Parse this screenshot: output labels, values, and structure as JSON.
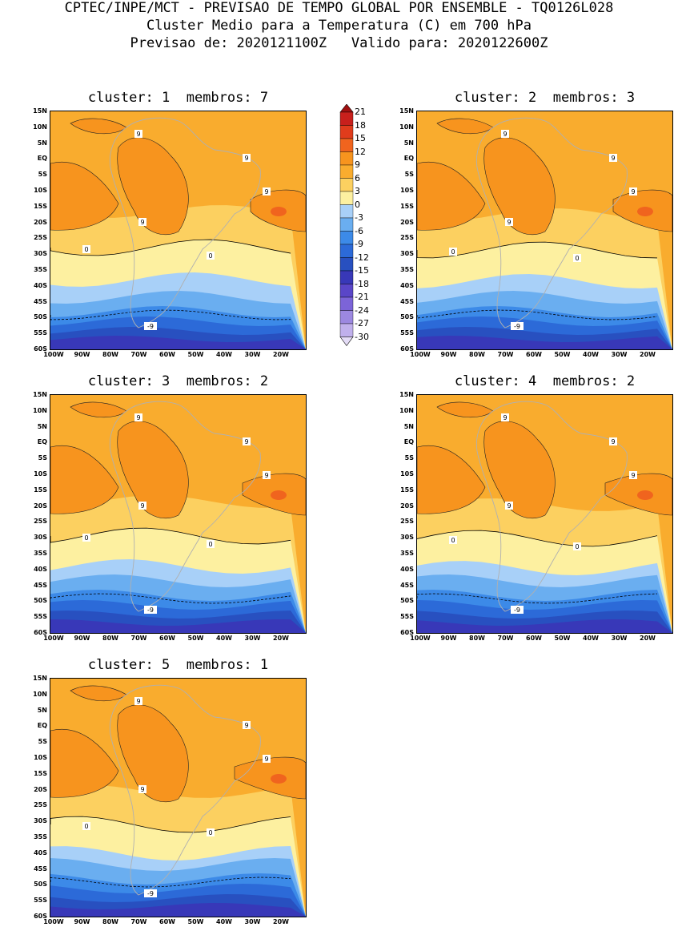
{
  "header": {
    "line1": "CPTEC/INPE/MCT - PREVISAO DE TEMPO GLOBAL POR ENSEMBLE - TQ0126L028",
    "line2": "Cluster Medio para a Temperatura (C) em 700 hPa",
    "line3": "Previsao de: 2020121100Z   Valido para: 2020122600Z"
  },
  "panels": [
    {
      "title": "cluster: 1  membros: 7"
    },
    {
      "title": "cluster: 2  membros: 3"
    },
    {
      "title": "cluster: 3  membros: 2"
    },
    {
      "title": "cluster: 4  membros: 2"
    },
    {
      "title": "cluster: 5  membros: 1"
    }
  ],
  "lat_labels": [
    "15N",
    "10N",
    "5N",
    "EQ",
    "5S",
    "10S",
    "15S",
    "20S",
    "25S",
    "30S",
    "35S",
    "40S",
    "45S",
    "50S",
    "55S",
    "60S"
  ],
  "lon_labels": [
    "100W",
    "90W",
    "80W",
    "70W",
    "60W",
    "50W",
    "40W",
    "30W",
    "20W"
  ],
  "contour_labels": [
    "9",
    "0",
    "-9"
  ],
  "colorbar": {
    "levels": [
      "21",
      "18",
      "15",
      "12",
      "9",
      "6",
      "3",
      "0",
      "-3",
      "-6",
      "-9",
      "-12",
      "-15",
      "-18",
      "-21",
      "-24",
      "-27",
      "-30"
    ],
    "colors": [
      "#a01010",
      "#c8201c",
      "#e03c1c",
      "#f0641e",
      "#f7941e",
      "#f9ac2e",
      "#fcd060",
      "#fdf0a0",
      "#a8d0f8",
      "#6aaef0",
      "#3c8ae8",
      "#2c6ad8",
      "#2850c0",
      "#3838b8",
      "#5a46c8",
      "#7c64d8",
      "#9c88e0",
      "#c0b0ec",
      "#e4dcf6"
    ]
  }
}
